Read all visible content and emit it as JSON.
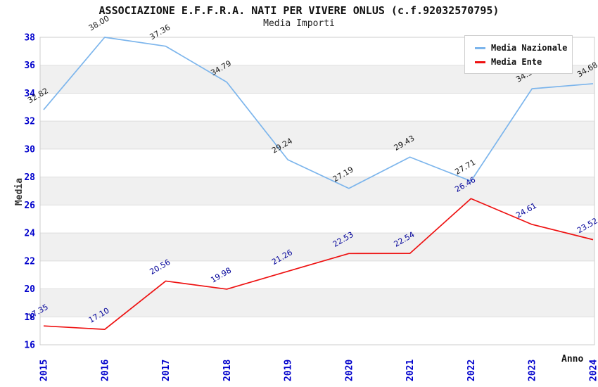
{
  "title": "ASSOCIAZIONE E.F.F.R.A. NATI PER VIVERE ONLUS (c.f.92032570795)",
  "subtitle": "Media Importi",
  "chart_data": {
    "type": "line",
    "categories": [
      "2015",
      "2016",
      "2017",
      "2018",
      "2019",
      "2020",
      "2021",
      "2022",
      "2023",
      "2024"
    ],
    "series": [
      {
        "name": "Media Nazionale",
        "color": "#7cb5ec",
        "label_color": "#1a1a1a",
        "values": [
          32.82,
          38.0,
          37.36,
          34.79,
          29.24,
          27.19,
          29.43,
          27.71,
          34.32,
          34.68
        ]
      },
      {
        "name": "Media Ente",
        "color": "#ee1111",
        "label_color": "#000099",
        "values": [
          17.35,
          17.1,
          20.56,
          19.98,
          21.26,
          22.53,
          22.54,
          26.46,
          24.61,
          23.52
        ]
      }
    ],
    "xlabel": "Anno",
    "ylabel": "Media",
    "ylim": [
      16,
      38
    ],
    "ytick_step": 2,
    "grid": "horizontal-bands",
    "legend_position": "top-right",
    "band_color": "#f0f0f0",
    "grid_color": "#dddddd",
    "border_color": "#cccccc",
    "tick_label_color": "#0000cc",
    "value_decimals": 2
  }
}
